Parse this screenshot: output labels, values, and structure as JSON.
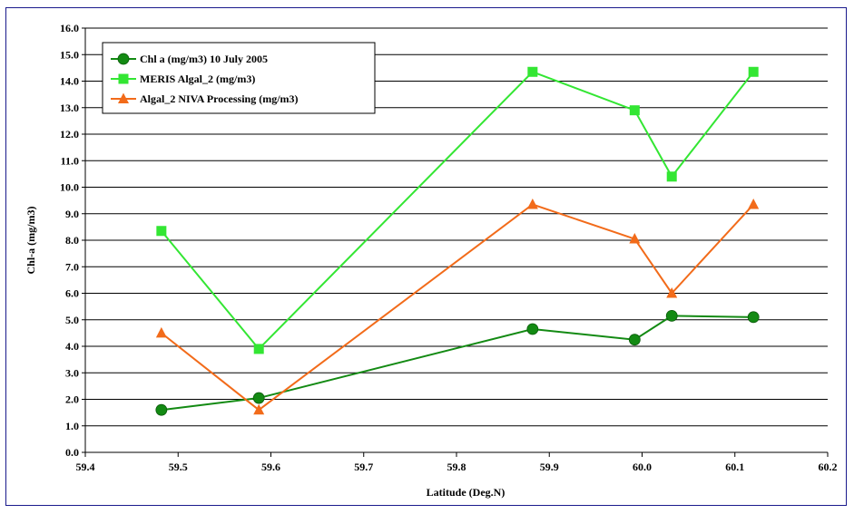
{
  "chart_data": {
    "type": "line",
    "title": "",
    "xlabel": "Latitude (Deg.N)",
    "ylabel": "Chl-a (mg/m3)",
    "xlim": [
      59.4,
      60.2
    ],
    "ylim": [
      0,
      16
    ],
    "x_ticks": [
      "59.4",
      "59.5",
      "59.6",
      "59.7",
      "59.8",
      "59.9",
      "60.0",
      "60.1",
      "60.2"
    ],
    "y_ticks": [
      "0.0",
      "1.0",
      "2.0",
      "3.0",
      "4.0",
      "5.0",
      "6.0",
      "7.0",
      "8.0",
      "9.0",
      "10.0",
      "11.0",
      "12.0",
      "13.0",
      "14.0",
      "15.0",
      "16.0"
    ],
    "grid": "horizontal",
    "legend_position": "top-left",
    "series": [
      {
        "name": "Chl a (mg/m3) 10 July 2005",
        "color": "#138a13",
        "marker": "circle",
        "x": [
          59.482,
          59.587,
          59.882,
          59.992,
          60.032,
          60.12
        ],
        "y": [
          1.6,
          2.05,
          4.65,
          4.25,
          5.15,
          5.1
        ]
      },
      {
        "name": "MERIS Algal_2 (mg/m3)",
        "color": "#33e633",
        "marker": "square",
        "x": [
          59.482,
          59.587,
          59.882,
          59.992,
          60.032,
          60.12
        ],
        "y": [
          8.35,
          3.9,
          14.35,
          12.9,
          10.4,
          14.35
        ]
      },
      {
        "name": "Algal_2 NIVA Processing (mg/m3)",
        "color": "#f26b1a",
        "marker": "triangle",
        "x": [
          59.482,
          59.587,
          59.882,
          59.992,
          60.032,
          60.12
        ],
        "y": [
          4.5,
          1.6,
          9.35,
          8.05,
          6.0,
          9.35
        ]
      }
    ]
  }
}
